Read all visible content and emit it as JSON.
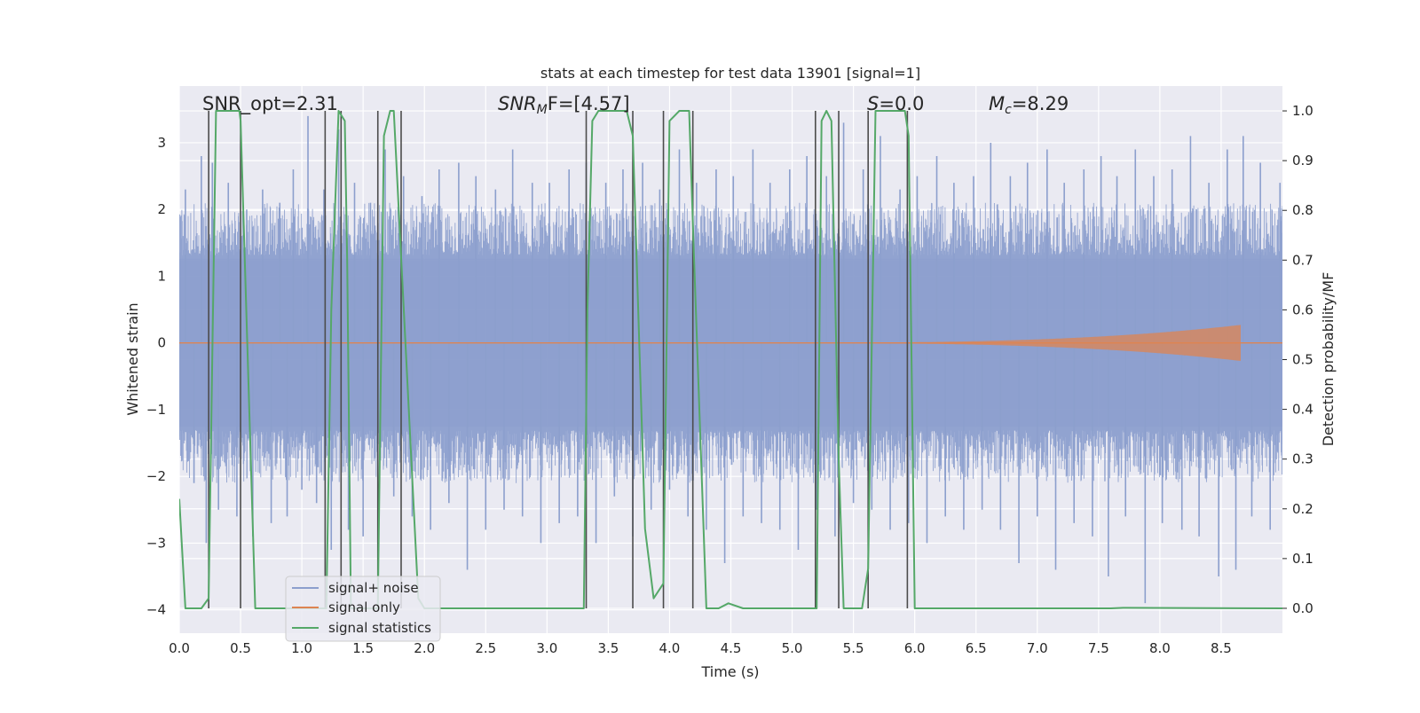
{
  "chart_data": {
    "type": "line",
    "title": "stats at each timestep for test data 13901 [signal=1]",
    "xlabel": "Time (s)",
    "ylabel": "Whitened strain",
    "y2label": "Detection probability/MF",
    "xlim": [
      0,
      9.0
    ],
    "ylim": [
      -4.35,
      3.85
    ],
    "y2lim": [
      -0.05,
      1.05
    ],
    "x_ticks": [
      "0.0",
      "0.5",
      "1.0",
      "1.5",
      "2.0",
      "2.5",
      "3.0",
      "3.5",
      "4.0",
      "4.5",
      "5.0",
      "5.5",
      "6.0",
      "6.5",
      "7.0",
      "7.5",
      "8.0",
      "8.5"
    ],
    "y_ticks": [
      "3",
      "2",
      "1",
      "0",
      "−1",
      "−2",
      "−3",
      "−4"
    ],
    "y2_ticks": [
      "1.0",
      "0.9",
      "0.8",
      "0.7",
      "0.6",
      "0.5",
      "0.4",
      "0.3",
      "0.2",
      "0.1",
      "0.0"
    ],
    "annotations": {
      "snr_opt": "SNR_opt=2.31",
      "snr_mf_sym": "SNR",
      "snr_mf_sub": "M",
      "snr_mf_rest": "F=[4.57]",
      "s_sym": "S",
      "s_rest": "=0.0",
      "mc_sym": "M",
      "mc_sub": "c",
      "mc_rest": "=8.29"
    },
    "legend": {
      "placement": "lower-left",
      "entries": [
        "signal+ noise",
        "signal only",
        "signal statistics"
      ]
    },
    "colors": {
      "noise": "#8c9fcd",
      "signal": "#dd8452",
      "stats": "#55a868",
      "vlines": "#4c4c4c",
      "panel": "#eaeaf2",
      "grid": "#ffffff"
    },
    "series": [
      {
        "name": "signal+ noise",
        "kind": "noise-band",
        "core_amplitude": 1.75,
        "peak_samples": [
          [
            0.05,
            2.3
          ],
          [
            0.12,
            -2.1
          ],
          [
            0.18,
            2.8
          ],
          [
            0.22,
            -3.0
          ],
          [
            0.27,
            2.7
          ],
          [
            0.32,
            -2.5
          ],
          [
            0.4,
            2.4
          ],
          [
            0.47,
            -2.6
          ],
          [
            0.55,
            2.0
          ],
          [
            0.6,
            -2.9
          ],
          [
            0.68,
            2.3
          ],
          [
            0.75,
            -2.7
          ],
          [
            0.82,
            2.1
          ],
          [
            0.88,
            -2.6
          ],
          [
            0.93,
            2.6
          ],
          [
            1.0,
            -2.2
          ],
          [
            1.05,
            3.4
          ],
          [
            1.12,
            -2.4
          ],
          [
            1.18,
            2.3
          ],
          [
            1.24,
            -3.1
          ],
          [
            1.3,
            3.2
          ],
          [
            1.38,
            -2.8
          ],
          [
            1.43,
            2.4
          ],
          [
            1.5,
            -2.9
          ],
          [
            1.56,
            2.1
          ],
          [
            1.62,
            -3.0
          ],
          [
            1.68,
            2.9
          ],
          [
            1.75,
            -2.3
          ],
          [
            1.83,
            2.5
          ],
          [
            1.9,
            -2.6
          ],
          [
            1.98,
            2.2
          ],
          [
            2.05,
            -2.8
          ],
          [
            2.12,
            2.6
          ],
          [
            2.2,
            -2.4
          ],
          [
            2.28,
            2.7
          ],
          [
            2.35,
            -3.4
          ],
          [
            2.42,
            2.5
          ],
          [
            2.5,
            -2.8
          ],
          [
            2.58,
            2.3
          ],
          [
            2.65,
            -2.5
          ],
          [
            2.72,
            2.9
          ],
          [
            2.8,
            -2.6
          ],
          [
            2.88,
            2.4
          ],
          [
            2.95,
            -3.0
          ],
          [
            3.02,
            2.4
          ],
          [
            3.1,
            -2.7
          ],
          [
            3.18,
            2.6
          ],
          [
            3.25,
            -2.6
          ],
          [
            3.32,
            2.7
          ],
          [
            3.4,
            -3.0
          ],
          [
            3.48,
            2.4
          ],
          [
            3.55,
            -2.3
          ],
          [
            3.62,
            2.6
          ],
          [
            3.7,
            -2.9
          ],
          [
            3.78,
            2.7
          ],
          [
            3.85,
            -2.5
          ],
          [
            3.92,
            2.3
          ],
          [
            4.0,
            -2.2
          ],
          [
            4.08,
            2.9
          ],
          [
            4.15,
            -2.6
          ],
          [
            4.22,
            2.4
          ],
          [
            4.3,
            -2.8
          ],
          [
            4.38,
            2.6
          ],
          [
            4.45,
            -3.3
          ],
          [
            4.52,
            2.5
          ],
          [
            4.6,
            -2.6
          ],
          [
            4.68,
            2.9
          ],
          [
            4.75,
            -2.7
          ],
          [
            4.82,
            2.4
          ],
          [
            4.9,
            -2.8
          ],
          [
            4.98,
            2.6
          ],
          [
            5.05,
            -3.1
          ],
          [
            5.12,
            2.8
          ],
          [
            5.2,
            -2.5
          ],
          [
            5.28,
            2.5
          ],
          [
            5.35,
            -2.9
          ],
          [
            5.42,
            3.3
          ],
          [
            5.5,
            -2.4
          ],
          [
            5.58,
            2.6
          ],
          [
            5.65,
            -2.5
          ],
          [
            5.72,
            3.1
          ],
          [
            5.8,
            -2.8
          ],
          [
            5.88,
            2.3
          ],
          [
            5.95,
            -2.7
          ],
          [
            6.02,
            2.5
          ],
          [
            6.1,
            -3.0
          ],
          [
            6.18,
            2.8
          ],
          [
            6.25,
            -2.6
          ],
          [
            6.32,
            2.4
          ],
          [
            6.4,
            -2.8
          ],
          [
            6.48,
            2.5
          ],
          [
            6.55,
            -2.5
          ],
          [
            6.62,
            3.0
          ],
          [
            6.7,
            -2.8
          ],
          [
            6.78,
            2.5
          ],
          [
            6.85,
            -3.3
          ],
          [
            6.92,
            2.7
          ],
          [
            7.0,
            -2.6
          ],
          [
            7.08,
            2.9
          ],
          [
            7.15,
            -3.4
          ],
          [
            7.22,
            2.4
          ],
          [
            7.3,
            -2.7
          ],
          [
            7.38,
            2.6
          ],
          [
            7.45,
            -2.9
          ],
          [
            7.52,
            2.8
          ],
          [
            7.58,
            -3.5
          ],
          [
            7.65,
            2.5
          ],
          [
            7.72,
            -2.6
          ],
          [
            7.8,
            2.9
          ],
          [
            7.88,
            -3.9
          ],
          [
            7.95,
            2.5
          ],
          [
            8.02,
            -2.7
          ],
          [
            8.1,
            2.6
          ],
          [
            8.18,
            -2.8
          ],
          [
            8.25,
            3.1
          ],
          [
            8.32,
            -2.9
          ],
          [
            8.4,
            2.4
          ],
          [
            8.48,
            -3.5
          ],
          [
            8.55,
            2.9
          ],
          [
            8.62,
            -3.4
          ],
          [
            8.68,
            3.1
          ],
          [
            8.75,
            -2.6
          ],
          [
            8.82,
            2.7
          ],
          [
            8.9,
            -2.8
          ],
          [
            8.98,
            2.4
          ]
        ]
      },
      {
        "name": "signal only",
        "kind": "chirp",
        "start_x": 4.5,
        "peak_x": 8.66,
        "peak_amplitude": 0.27,
        "end_x": 9.0
      },
      {
        "name": "signal statistics",
        "axis": "right",
        "x": [
          0.0,
          0.05,
          0.18,
          0.24,
          0.3,
          0.49,
          0.5,
          0.62,
          1.2,
          1.24,
          1.3,
          1.35,
          1.37,
          1.4,
          1.62,
          1.67,
          1.72,
          1.75,
          1.95,
          2.0,
          2.25,
          3.3,
          3.33,
          3.37,
          3.42,
          3.65,
          3.7,
          3.8,
          3.87,
          3.95,
          4.0,
          4.08,
          4.16,
          4.2,
          4.3,
          4.32,
          4.4,
          4.48,
          4.6,
          5.2,
          5.24,
          5.28,
          5.32,
          5.38,
          5.42,
          5.57,
          5.62,
          5.68,
          5.92,
          5.95,
          6.0,
          7.6,
          7.7,
          9.0
        ],
        "y": [
          0.22,
          0.0,
          0.0,
          0.02,
          1.0,
          1.0,
          0.98,
          0.0,
          0.0,
          0.6,
          1.0,
          0.98,
          0.7,
          0.0,
          0.0,
          0.95,
          1.0,
          1.0,
          0.02,
          0.0,
          0.0,
          0.0,
          0.6,
          0.98,
          1.0,
          1.0,
          0.95,
          0.16,
          0.02,
          0.05,
          0.98,
          1.0,
          1.0,
          0.7,
          0.0,
          0.0,
          0.0,
          0.01,
          0.0,
          0.0,
          0.98,
          1.0,
          0.98,
          0.3,
          0.0,
          0.0,
          0.08,
          1.0,
          1.0,
          0.95,
          0.0,
          0.0,
          0.001,
          0.0
        ]
      }
    ],
    "vlines_x": [
      0.24,
      0.5,
      1.19,
      1.32,
      1.62,
      1.81,
      3.32,
      3.7,
      3.95,
      4.19,
      5.19,
      5.38,
      5.62,
      5.94
    ]
  }
}
